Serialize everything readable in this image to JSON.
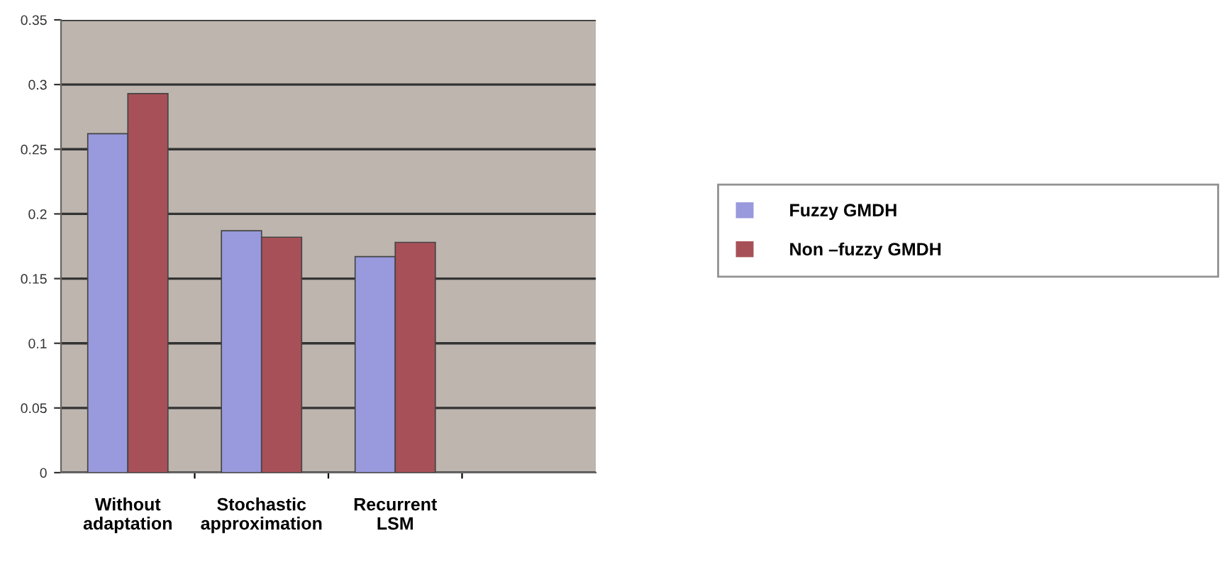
{
  "chart_data": {
    "type": "bar",
    "categories": [
      "Without\nadaptation",
      "Stochastic\napproximation",
      "Recurrent\nLSM",
      null
    ],
    "series": [
      {
        "name": "Fuzzy GMDH",
        "color": "#9999dd",
        "values": [
          0.262,
          0.187,
          0.167,
          null
        ]
      },
      {
        "name": "Non –fuzzy GMDH",
        "color": "#a85058",
        "values": [
          0.293,
          0.182,
          0.178,
          null
        ]
      }
    ],
    "ylim": [
      0,
      0.35
    ],
    "yticks": [
      0,
      0.05,
      0.1,
      0.15,
      0.2,
      0.25,
      0.3,
      0.35
    ],
    "grid": "y",
    "legend": "right"
  }
}
